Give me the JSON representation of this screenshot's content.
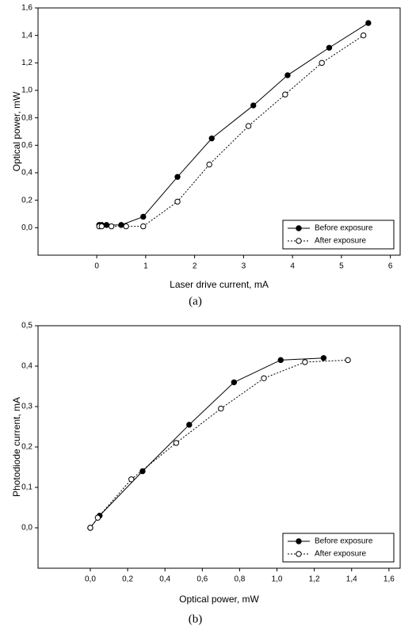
{
  "chart_data": [
    {
      "type": "line",
      "xlabel": "Laser drive current, mA",
      "ylabel": "Optical power, mW",
      "caption": "(a)",
      "xlim": [
        -1.2,
        6.2
      ],
      "xticks": [
        0,
        1,
        2,
        3,
        4,
        5,
        6
      ],
      "ylim": [
        -0.2,
        1.6
      ],
      "yticks": [
        {
          "value": 0,
          "label": "0,0"
        },
        {
          "value": 0.2,
          "label": "0,2"
        },
        {
          "value": 0.4,
          "label": "0,4"
        },
        {
          "value": 0.6,
          "label": "0,6"
        },
        {
          "value": 0.8,
          "label": "0,8"
        },
        {
          "value": 1.0,
          "label": "1,0"
        },
        {
          "value": 1.2,
          "label": "1,2"
        },
        {
          "value": 1.4,
          "label": "1,4"
        },
        {
          "value": 1.6,
          "label": "1,6"
        }
      ],
      "legend": "lower right",
      "series": [
        {
          "name": "Before exposure",
          "color": "#000000",
          "dash": "solid",
          "marker": "filled",
          "x": [
            0.05,
            0.1,
            0.2,
            0.5,
            0.95,
            1.65,
            2.35,
            3.2,
            3.9,
            4.75,
            5.55
          ],
          "values": [
            0.02,
            0.02,
            0.02,
            0.02,
            0.08,
            0.37,
            0.65,
            0.89,
            1.11,
            1.31,
            1.49
          ]
        },
        {
          "name": "After exposure",
          "color": "#000000",
          "dash": "dotted",
          "marker": "hollow",
          "x": [
            0.05,
            0.1,
            0.3,
            0.6,
            0.95,
            1.65,
            2.3,
            3.1,
            3.85,
            4.6,
            5.45
          ],
          "values": [
            0.01,
            0.01,
            0.01,
            0.01,
            0.01,
            0.19,
            0.46,
            0.74,
            0.97,
            1.2,
            1.4
          ]
        }
      ]
    },
    {
      "type": "line",
      "xlabel": "Optical power, mW",
      "ylabel": "Photodiode current, mA",
      "caption": "(b)",
      "xlim": [
        -0.28,
        1.66
      ],
      "xticks": [
        {
          "value": 0,
          "label": "0,0"
        },
        {
          "value": 0.2,
          "label": "0,2"
        },
        {
          "value": 0.4,
          "label": "0,4"
        },
        {
          "value": 0.6,
          "label": "0,6"
        },
        {
          "value": 0.8,
          "label": "0,8"
        },
        {
          "value": 1.0,
          "label": "1,0"
        },
        {
          "value": 1.2,
          "label": "1,2"
        },
        {
          "value": 1.4,
          "label": "1,4"
        },
        {
          "value": 1.6,
          "label": "1,6"
        }
      ],
      "ylim": [
        -0.1,
        0.5
      ],
      "yticks": [
        {
          "value": 0,
          "label": "0,0"
        },
        {
          "value": 0.1,
          "label": "0,1"
        },
        {
          "value": 0.2,
          "label": "0,2"
        },
        {
          "value": 0.3,
          "label": "0,3"
        },
        {
          "value": 0.4,
          "label": "0,4"
        },
        {
          "value": 0.5,
          "label": "0,5"
        }
      ],
      "legend": "lower right",
      "series": [
        {
          "name": "Before exposure",
          "color": "#000000",
          "dash": "solid",
          "marker": "filled",
          "x": [
            0.0,
            0.05,
            0.28,
            0.53,
            0.77,
            1.02,
            1.25
          ],
          "values": [
            0.0,
            0.03,
            0.14,
            0.255,
            0.36,
            0.415,
            0.42
          ]
        },
        {
          "name": "After exposure",
          "color": "#000000",
          "dash": "dotted",
          "marker": "hollow",
          "x": [
            0.0,
            0.04,
            0.22,
            0.46,
            0.7,
            0.93,
            1.15,
            1.38
          ],
          "values": [
            0.0,
            0.025,
            0.12,
            0.21,
            0.295,
            0.37,
            0.41,
            0.415
          ]
        }
      ]
    }
  ]
}
